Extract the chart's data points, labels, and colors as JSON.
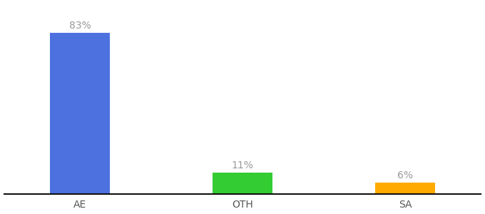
{
  "categories": [
    "AE",
    "OTH",
    "SA"
  ],
  "values": [
    83,
    11,
    6
  ],
  "labels": [
    "83%",
    "11%",
    "6%"
  ],
  "bar_colors": [
    "#4d72e0",
    "#33cc33",
    "#ffaa00"
  ],
  "background_color": "#ffffff",
  "text_color": "#999999",
  "label_fontsize": 10,
  "tick_fontsize": 10,
  "tick_color": "#555555",
  "ylim": [
    0,
    98
  ],
  "bar_width": 0.55,
  "x_positions": [
    0.5,
    2.0,
    3.5
  ],
  "xlim": [
    -0.2,
    4.2
  ]
}
